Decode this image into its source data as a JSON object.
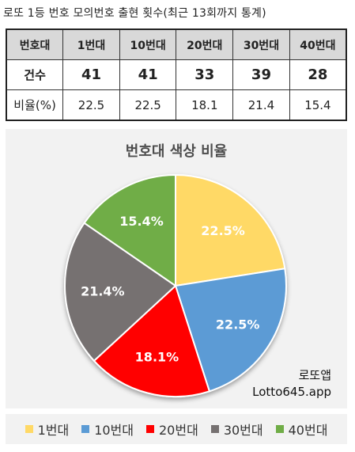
{
  "header": {
    "title": "로또 1등 번호 모의번호 출현 횟수(최근 13회까지 통계)"
  },
  "table": {
    "header": [
      "번호대",
      "1번대",
      "10번대",
      "20번대",
      "30번대",
      "40번대"
    ],
    "rows": [
      [
        "건수",
        "41",
        "41",
        "33",
        "39",
        "28"
      ],
      [
        "비율(%)",
        "22.5",
        "22.5",
        "18.1",
        "21.4",
        "15.4"
      ]
    ]
  },
  "chart_data": {
    "type": "pie",
    "title": "번호대 색상 비율",
    "categories": [
      "1번대",
      "10번대",
      "20번대",
      "30번대",
      "40번대"
    ],
    "values": [
      22.5,
      22.5,
      18.1,
      21.4,
      15.4
    ],
    "data_labels": [
      "22.5%",
      "22.5%",
      "18.1%",
      "21.4%",
      "15.4%"
    ],
    "colors": [
      "#ffd966",
      "#5b9bd5",
      "#ff0000",
      "#767171",
      "#70ad47"
    ],
    "legend_position": "bottom"
  },
  "watermark": {
    "line1": "로또앱",
    "line2": "Lotto645.app"
  }
}
